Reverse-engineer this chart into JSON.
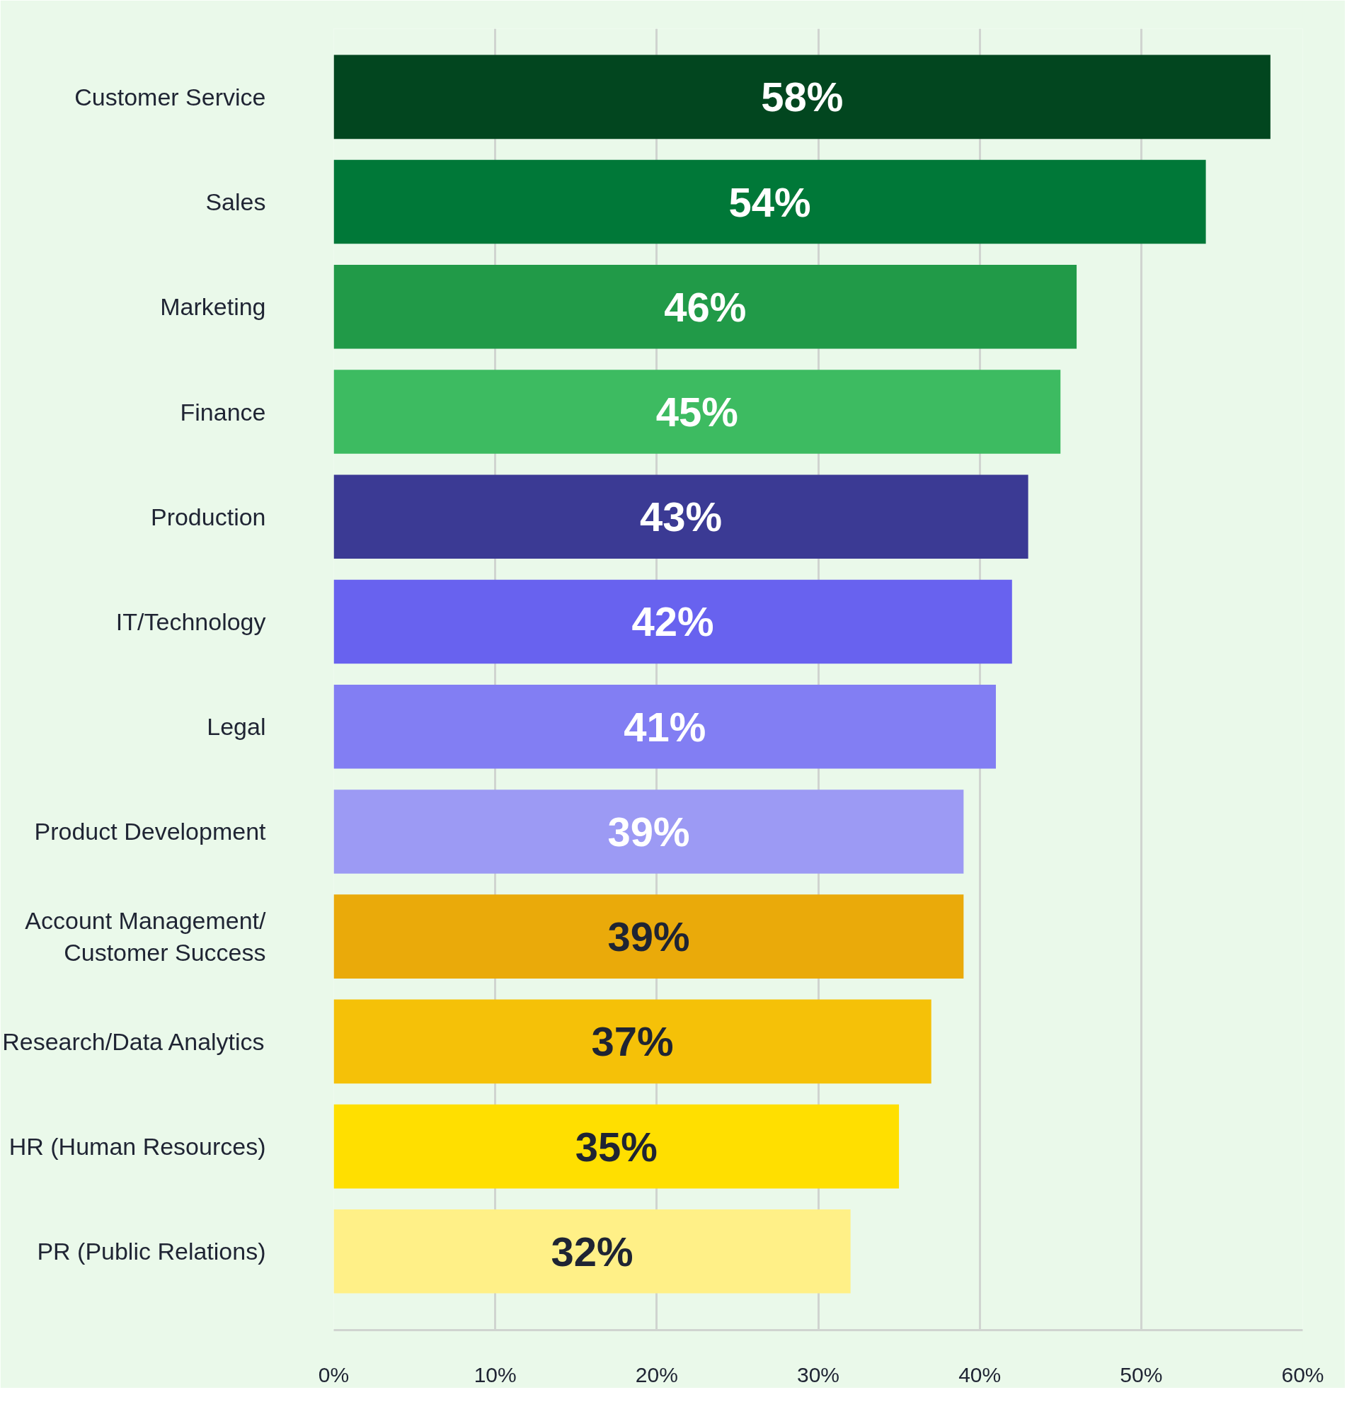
{
  "chart_data": {
    "type": "bar",
    "orientation": "horizontal",
    "categories": [
      "Customer Service",
      "Sales",
      "Marketing",
      "Finance",
      "Production",
      "IT/Technology",
      "Legal",
      "Product Development",
      "Account Management/\nCustomer Success",
      "Research/Data Analytics",
      "HR (Human Resources)",
      "PR (Public Relations)"
    ],
    "values": [
      58,
      54,
      46,
      45,
      43,
      42,
      41,
      39,
      39,
      37,
      35,
      32
    ],
    "value_labels": [
      "58%",
      "54%",
      "46%",
      "45%",
      "43%",
      "42%",
      "41%",
      "39%",
      "39%",
      "37%",
      "35%",
      "32%"
    ],
    "colors": [
      "#02461f",
      "#007838",
      "#219a48",
      "#3dbb61",
      "#3b3a94",
      "#6862ef",
      "#827ef3",
      "#9c9af4",
      "#eaaa0a",
      "#f5c108",
      "#ffdf00",
      "#fff087"
    ],
    "xlim": [
      0,
      60
    ],
    "xticks": [
      {
        "value": 0,
        "label": "0%"
      },
      {
        "value": 10,
        "label": "10%"
      },
      {
        "value": 20,
        "label": "20%"
      },
      {
        "value": 30,
        "label": "30%"
      },
      {
        "value": 40,
        "label": "40%"
      },
      {
        "value": 50,
        "label": "50%"
      },
      {
        "value": 60,
        "label": "60%"
      }
    ],
    "grid": "x"
  }
}
